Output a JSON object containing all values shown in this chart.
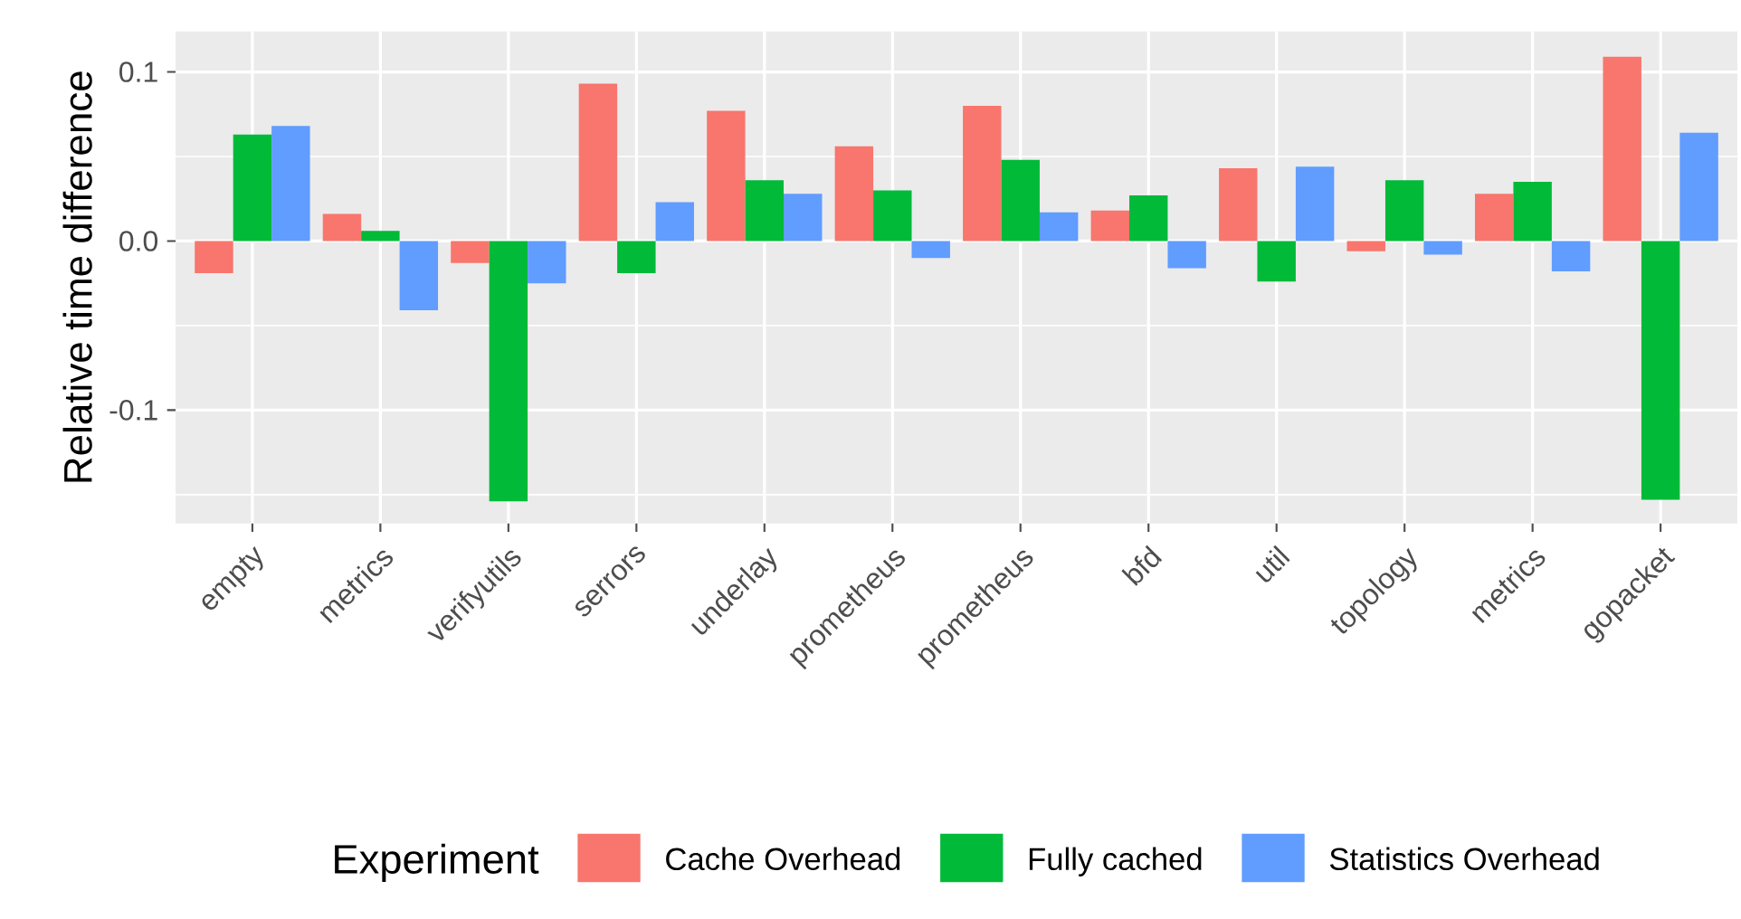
{
  "chart_data": {
    "type": "bar",
    "ylabel": "Relative time difference",
    "legend_title": "Experiment",
    "categories": [
      "empty",
      "metrics",
      "verifyutils",
      "serrors",
      "underlay",
      "prometheus",
      "prometheus",
      "bfd",
      "util",
      "topology",
      "metrics",
      "gopacket"
    ],
    "series": [
      {
        "name": "Cache Overhead",
        "color": "#f8766d",
        "values": [
          -0.019,
          0.016,
          -0.013,
          0.093,
          0.077,
          0.056,
          0.08,
          0.018,
          0.043,
          -0.006,
          0.028,
          0.109
        ]
      },
      {
        "name": "Fully cached",
        "color": "#00ba38",
        "values": [
          0.063,
          0.006,
          -0.154,
          -0.019,
          0.036,
          0.03,
          0.048,
          0.027,
          -0.024,
          0.036,
          0.035,
          -0.153
        ]
      },
      {
        "name": "Statistics Overhead",
        "color": "#619cff",
        "values": [
          0.068,
          -0.041,
          -0.025,
          0.023,
          0.028,
          -0.01,
          0.017,
          -0.016,
          0.044,
          -0.008,
          -0.018,
          0.064
        ]
      }
    ],
    "ylim": [
      -0.167,
      0.124
    ],
    "yticks": [
      {
        "value": -0.15,
        "label": null
      },
      {
        "value": -0.1,
        "label": "-0.1"
      },
      {
        "value": -0.05,
        "label": null
      },
      {
        "value": 0.0,
        "label": "0.0"
      },
      {
        "value": 0.05,
        "label": null
      },
      {
        "value": 0.1,
        "label": "0.1"
      }
    ],
    "grid": true,
    "legend": "bottom"
  }
}
